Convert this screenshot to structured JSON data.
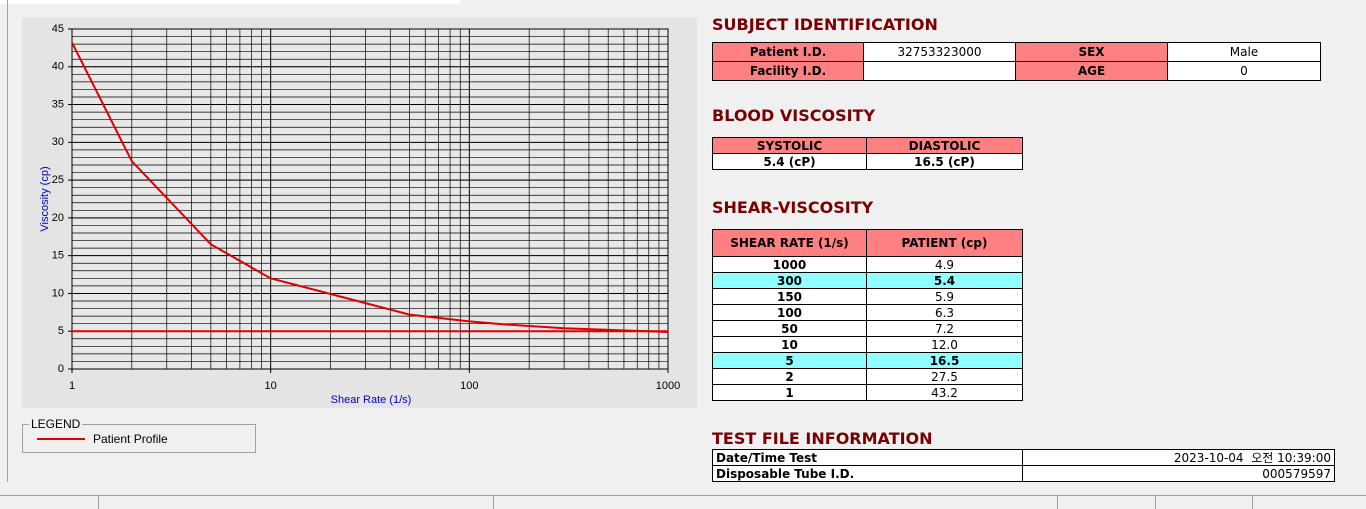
{
  "chart_data": {
    "type": "line",
    "x_label": "Shear Rate (1/s)",
    "y_label": "Viscosity (cp)",
    "x_scale": "log",
    "xlim": [
      1,
      1000
    ],
    "xticks": [
      1,
      10,
      100,
      1000
    ],
    "ylim": [
      0,
      45
    ],
    "yticks": [
      0,
      5,
      10,
      15,
      20,
      25,
      30,
      35,
      40,
      45
    ],
    "grid": true,
    "legend_title": "LEGEND",
    "series": [
      {
        "name": "Patient Profile",
        "color": "#e00000",
        "x": [
          1,
          2,
          5,
          10,
          50,
          100,
          150,
          300,
          1000
        ],
        "values": [
          43.2,
          27.5,
          16.5,
          12.0,
          7.2,
          6.3,
          5.9,
          5.4,
          4.9
        ]
      },
      {
        "color": "#e00000",
        "x": [
          1,
          1000
        ],
        "values": [
          5,
          5
        ]
      }
    ]
  },
  "subject": {
    "title": "SUBJECT IDENTIFICATION",
    "fields": [
      {
        "label": "Patient I.D.",
        "value": "32753323000"
      },
      {
        "label": "SEX",
        "value": "Male"
      },
      {
        "label": "Facility I.D."
      },
      {
        "label": "AGE",
        "value": "0"
      }
    ]
  },
  "blood": {
    "title": "BLOOD VISCOSITY",
    "headers": [
      "SYSTOLIC",
      "DIASTOLIC"
    ],
    "values": [
      "5.4 (cP)",
      "16.5 (cP)"
    ]
  },
  "shear": {
    "title": "SHEAR-VISCOSITY",
    "headers": [
      "SHEAR RATE (1/s)",
      "PATIENT (cp)"
    ],
    "rows": [
      {
        "cells": [
          "1000",
          "4.9"
        ]
      },
      {
        "cells": [
          "300",
          "5.4"
        ],
        "highlight": true
      },
      {
        "cells": [
          "150",
          "5.9"
        ]
      },
      {
        "cells": [
          "100",
          "6.3"
        ]
      },
      {
        "cells": [
          "50",
          "7.2"
        ]
      },
      {
        "cells": [
          "10",
          "12.0"
        ]
      },
      {
        "cells": [
          "5",
          "16.5"
        ],
        "highlight": true
      },
      {
        "cells": [
          "2",
          "27.5"
        ]
      },
      {
        "cells": [
          "1",
          "43.2"
        ]
      }
    ]
  },
  "test_file": {
    "title": "TEST FILE INFORMATION",
    "rows": [
      [
        "Date/Time Test",
        "2023-10-04  오전 10:39:00"
      ],
      [
        "Disposable Tube I.D.",
        "000579597"
      ]
    ]
  }
}
